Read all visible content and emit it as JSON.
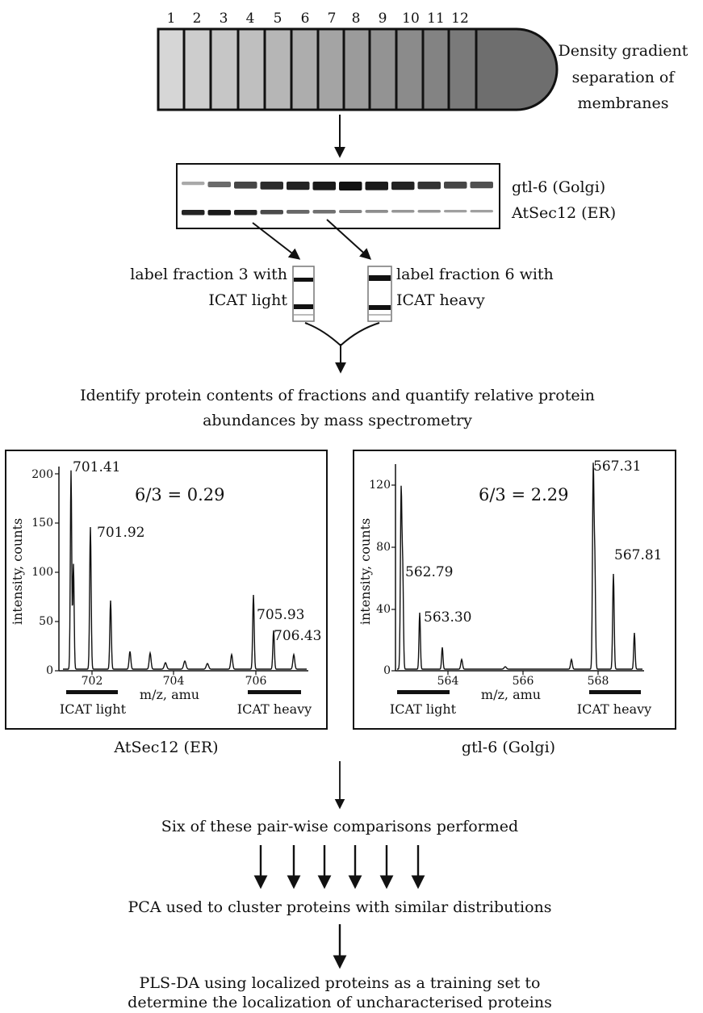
{
  "gradient": {
    "fraction_numbers": [
      "1",
      "2",
      "3",
      "4",
      "5",
      "6",
      "7",
      "8",
      "9",
      "10",
      "11",
      "12"
    ],
    "caption": [
      "Density gradient",
      "separation of",
      "membranes"
    ],
    "colors": [
      "#d6d6d6",
      "#cdcdcd",
      "#c6c6c6",
      "#bfbfbf",
      "#b6b6b6",
      "#adadad",
      "#a4a4a4",
      "#9b9b9b",
      "#939393",
      "#8b8b8b",
      "#838383",
      "#7a7a7a",
      "#6e6e6e"
    ]
  },
  "blot": {
    "labels": [
      "gtl-6 (Golgi)",
      "AtSec12 (ER)"
    ]
  },
  "icat_labeling": {
    "left_text": [
      "label fraction 3 with",
      "ICAT  light"
    ],
    "right_text": [
      "label fraction 6 with",
      "ICAT heavy"
    ]
  },
  "step_identify": [
    "Identify protein contents of fractions and quantify relative protein",
    "abundances by mass spectrometry"
  ],
  "spectra": [
    {
      "caption": "AtSec12 (ER)",
      "ratio_text": "6/3 = 0.29",
      "ylabel": "intensity, counts",
      "xlabel": "m/z, amu",
      "yticks": [
        "0",
        "50",
        "100",
        "150",
        "200"
      ],
      "xticks": [
        "702",
        "704",
        "706"
      ],
      "peak_labels": [
        "701.41",
        "701.92",
        "705.93",
        "706.43"
      ],
      "bar_labels": [
        "ICAT light",
        "ICAT heavy"
      ]
    },
    {
      "caption": "gtl-6 (Golgi)",
      "ratio_text": "6/3 = 2.29",
      "ylabel": "intensity, counts",
      "xlabel": "m/z, amu",
      "yticks": [
        "0",
        "40",
        "80",
        "120"
      ],
      "xticks": [
        "564",
        "566",
        "568"
      ],
      "peak_labels": [
        "562.79",
        "563.30",
        "567.31",
        "567.81"
      ],
      "bar_labels": [
        "ICAT light",
        "ICAT heavy"
      ]
    }
  ],
  "step_pairwise": "Six of these pair-wise comparisons performed",
  "step_pca": "PCA used to cluster proteins with similar distributions",
  "step_plsda": [
    "PLS-DA using localized proteins as a training set to",
    "determine the localization of uncharacterised proteins"
  ]
}
